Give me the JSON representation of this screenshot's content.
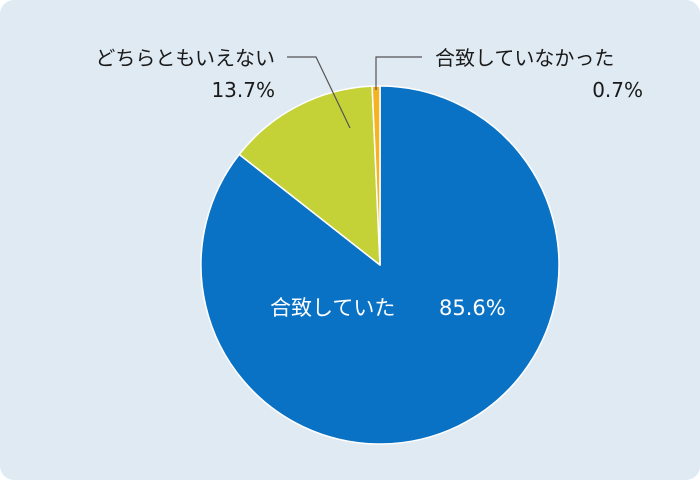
{
  "chart_data": {
    "type": "pie",
    "start_angle_deg": 0,
    "direction": "clockwise",
    "slices": [
      {
        "label": "合致していた",
        "value": 85.6,
        "value_label": "85.6%",
        "color": "#0a72c4"
      },
      {
        "label": "どちらともいえない",
        "value": 13.7,
        "value_label": "13.7%",
        "color": "#c4d137"
      },
      {
        "label": "合致していなかった",
        "value": 0.7,
        "value_label": "0.7%",
        "color": "#f5b324"
      }
    ],
    "background": "#dfeaf3",
    "leader_color": "#555555"
  }
}
